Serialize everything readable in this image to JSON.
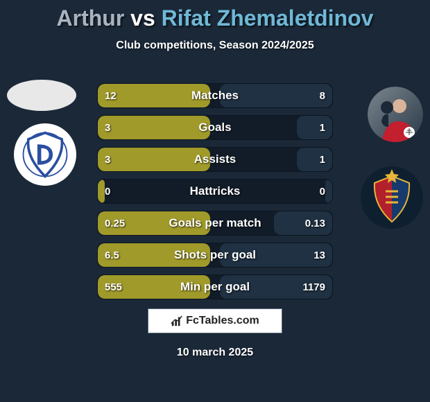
{
  "title": {
    "player1": "Arthur",
    "vs": "vs",
    "player2": "Rifat Zhemaletdinov",
    "player1_color": "#a9b3c0",
    "player2_color": "#6fb8d6",
    "fontsize": 32
  },
  "subtitle": "Club competitions, Season 2024/2025",
  "bar_style": {
    "track_bg": "#111c28",
    "left_color": "#a09a2a",
    "right_color": "#1f3142",
    "height": 36,
    "radius": 10,
    "label_fontsize": 17,
    "value_fontsize": 15
  },
  "bars": [
    {
      "label": "Matches",
      "left_val": "12",
      "right_val": "8",
      "left_pct": 48,
      "right_pct": 48
    },
    {
      "label": "Goals",
      "left_val": "3",
      "right_val": "1",
      "left_pct": 48,
      "right_pct": 15
    },
    {
      "label": "Assists",
      "left_val": "3",
      "right_val": "1",
      "left_pct": 48,
      "right_pct": 15
    },
    {
      "label": "Hattricks",
      "left_val": "0",
      "right_val": "0",
      "left_pct": 3,
      "right_pct": 3
    },
    {
      "label": "Goals per match",
      "left_val": "0.25",
      "right_val": "0.13",
      "left_pct": 48,
      "right_pct": 25
    },
    {
      "label": "Shots per goal",
      "left_val": "6.5",
      "right_val": "13",
      "left_pct": 48,
      "right_pct": 48
    },
    {
      "label": "Min per goal",
      "left_val": "555",
      "right_val": "1179",
      "left_pct": 48,
      "right_pct": 48
    }
  ],
  "avatars": {
    "left": {
      "bg": "#e8e8e8"
    },
    "right": {
      "shirt_color": "#c21f2f",
      "bg_grad_from": "#6b7680",
      "bg_grad_to": "#2a3a48"
    }
  },
  "clubs": {
    "left": {
      "bg": "#ffffff",
      "crest_stroke": "#2a4fa0",
      "crest_fill": "#ffffff",
      "inner": "#2a4fa0"
    },
    "right": {
      "bg1": "#153a6b",
      "bg2": "#b2202c",
      "star": "#e7b53a"
    }
  },
  "brand": {
    "text": "FcTables.com",
    "box_bg": "#ffffff",
    "box_border": "#5a6b7a",
    "icon": "#222222"
  },
  "date": "10 march 2025",
  "background": "#1a2838"
}
